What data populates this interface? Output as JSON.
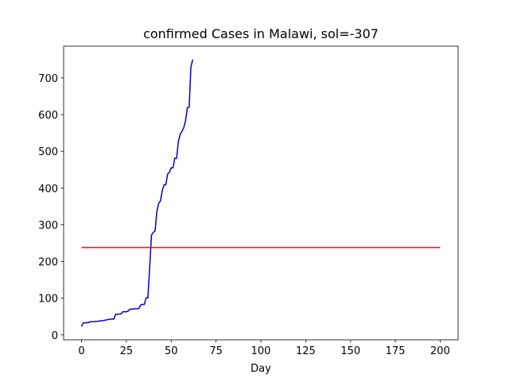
{
  "chart_data": {
    "type": "line",
    "title": "confirmed Cases in Malawi, sol=-307",
    "xlabel": "Day",
    "xlim": [
      -10,
      210
    ],
    "ylim": [
      -13.4,
      786.4
    ],
    "xticks": [
      0,
      25,
      50,
      75,
      100,
      125,
      150,
      175,
      200
    ],
    "yticks": [
      0,
      100,
      200,
      300,
      400,
      500,
      600,
      700
    ],
    "grid": false,
    "series": [
      {
        "color": "#0000cc",
        "x": [
          0,
          1,
          2,
          3,
          4,
          5,
          6,
          7,
          8,
          9,
          10,
          11,
          12,
          13,
          14,
          15,
          16,
          17,
          18,
          19,
          20,
          21,
          22,
          23,
          24,
          25,
          26,
          27,
          28,
          29,
          30,
          31,
          32,
          33,
          34,
          35,
          36,
          37,
          38,
          39,
          40,
          41,
          42,
          43,
          44,
          45,
          46,
          47,
          48,
          49,
          50,
          51,
          52,
          53,
          54,
          55,
          56,
          57,
          58,
          59,
          60,
          61,
          62
        ],
        "values": [
          23,
          33,
          33,
          33,
          34,
          36,
          36,
          36,
          37,
          37,
          38,
          38,
          39,
          40,
          41,
          42,
          43,
          43,
          43,
          56,
          56,
          57,
          57,
          63,
          63,
          63,
          65,
          70,
          70,
          71,
          71,
          71,
          72,
          82,
          83,
          83,
          101,
          101,
          185,
          272,
          279,
          283,
          336,
          358,
          365,
          393,
          409,
          409,
          438,
          443,
          455,
          455,
          481,
          481,
          527,
          546,
          555,
          564,
          583,
          619,
          620,
          730,
          750
        ]
      },
      {
        "color": "#ff0000",
        "x": [
          0,
          200
        ],
        "values": [
          238,
          238
        ]
      }
    ]
  }
}
